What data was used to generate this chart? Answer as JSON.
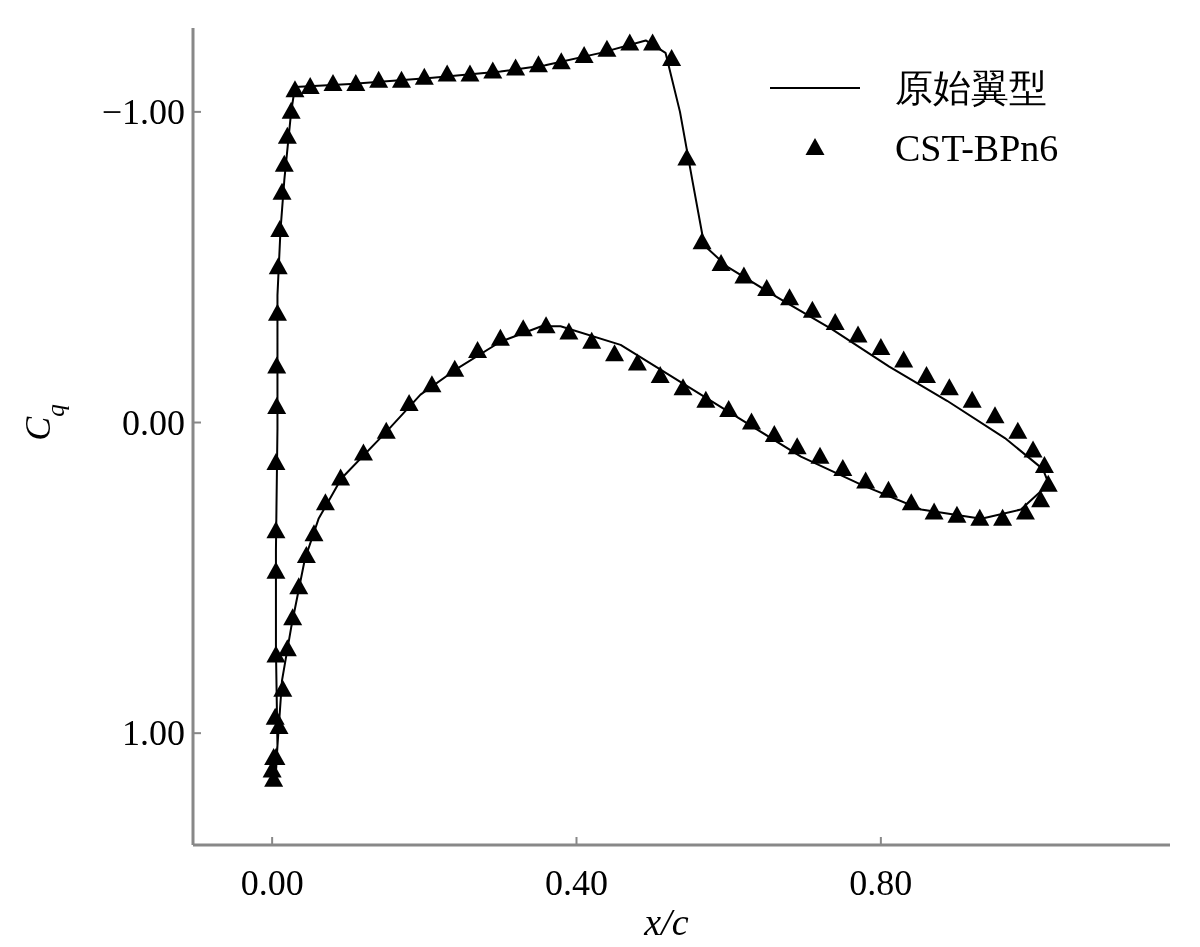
{
  "chart_data": {
    "type": "line",
    "xlabel": "x/c",
    "ylabel": "C$_{q}$",
    "xlim": [
      -0.104,
      1.18
    ],
    "ylim": [
      1.36,
      -1.27
    ],
    "xticks": [
      {
        "value": 0,
        "label": "0.00"
      },
      {
        "value": 0.4,
        "label": "0.40"
      },
      {
        "value": 0.8,
        "label": "0.80"
      }
    ],
    "yticks": [
      {
        "value": -1,
        "label": "−1.00"
      },
      {
        "value": 0,
        "label": "0.00"
      },
      {
        "value": 1,
        "label": "1.00"
      }
    ],
    "grid": false,
    "legend": "top right",
    "series": [
      {
        "name": "原始翼型",
        "type": "line",
        "color": "#000000",
        "line_style": "solid",
        "marker": "none",
        "x": [
          0.004,
          0.007,
          0.005,
          0.005,
          0.007,
          0.007,
          0.011,
          0.016,
          0.025,
          0.03,
          0.103,
          0.211,
          0.3,
          0.359,
          0.432,
          0.491,
          0.517,
          0.536,
          0.553,
          0.568,
          0.599,
          0.659,
          0.736,
          0.811,
          0.887,
          0.963,
          1.013,
          1.021,
          1.011,
          0.984,
          0.932,
          0.853,
          0.774,
          0.695,
          0.616,
          0.537,
          0.458,
          0.379,
          0.354,
          0.3,
          0.241,
          0.195,
          0.15,
          0.091,
          0.061,
          0.043,
          0.025,
          0.013,
          0.007,
          0.001
        ],
        "values": [
          1.17,
          1.04,
          0.73,
          0.41,
          0.02,
          -0.41,
          -0.62,
          -0.78,
          -1.0,
          -1.08,
          -1.09,
          -1.11,
          -1.13,
          -1.15,
          -1.19,
          -1.23,
          -1.19,
          -1.0,
          -0.77,
          -0.57,
          -0.5,
          -0.41,
          -0.3,
          -0.18,
          -0.07,
          0.05,
          0.15,
          0.2,
          0.22,
          0.28,
          0.31,
          0.28,
          0.2,
          0.11,
          -0.01,
          -0.13,
          -0.25,
          -0.31,
          -0.31,
          -0.26,
          -0.17,
          -0.09,
          0.03,
          0.18,
          0.31,
          0.44,
          0.66,
          0.83,
          1.04,
          1.17
        ]
      },
      {
        "name": "CST-BPn6",
        "type": "scatter",
        "color": "#000000",
        "marker": "triangle",
        "x": [
          0.0,
          0.002,
          0.004,
          0.005,
          0.005,
          0.005,
          0.005,
          0.006,
          0.006,
          0.007,
          0.008,
          0.01,
          0.013,
          0.016,
          0.02,
          0.025,
          0.03,
          0.05,
          0.08,
          0.11,
          0.14,
          0.17,
          0.2,
          0.23,
          0.26,
          0.29,
          0.32,
          0.35,
          0.38,
          0.41,
          0.44,
          0.47,
          0.5,
          0.525,
          0.545,
          0.565,
          0.59,
          0.62,
          0.65,
          0.68,
          0.71,
          0.74,
          0.77,
          0.8,
          0.83,
          0.86,
          0.89,
          0.92,
          0.95,
          0.98,
          1.0,
          1.015,
          1.02,
          1.01,
          0.99,
          0.96,
          0.93,
          0.9,
          0.87,
          0.84,
          0.81,
          0.78,
          0.75,
          0.72,
          0.69,
          0.66,
          0.63,
          0.6,
          0.57,
          0.54,
          0.51,
          0.48,
          0.45,
          0.42,
          0.39,
          0.36,
          0.33,
          0.3,
          0.27,
          0.24,
          0.21,
          0.18,
          0.15,
          0.12,
          0.09,
          0.07,
          0.055,
          0.045,
          0.035,
          0.027,
          0.02,
          0.014,
          0.009,
          0.005,
          0.002
        ],
        "values": [
          1.12,
          1.08,
          0.95,
          0.75,
          0.48,
          0.35,
          0.13,
          -0.05,
          -0.18,
          -0.35,
          -0.5,
          -0.62,
          -0.74,
          -0.83,
          -0.92,
          -1.0,
          -1.07,
          -1.08,
          -1.09,
          -1.09,
          -1.1,
          -1.1,
          -1.11,
          -1.12,
          -1.12,
          -1.13,
          -1.14,
          -1.15,
          -1.16,
          -1.18,
          -1.2,
          -1.22,
          -1.22,
          -1.17,
          -0.85,
          -0.58,
          -0.51,
          -0.47,
          -0.43,
          -0.4,
          -0.36,
          -0.32,
          -0.28,
          -0.24,
          -0.2,
          -0.15,
          -0.11,
          -0.07,
          -0.02,
          0.03,
          0.09,
          0.14,
          0.2,
          0.25,
          0.29,
          0.31,
          0.31,
          0.3,
          0.29,
          0.26,
          0.22,
          0.19,
          0.15,
          0.11,
          0.08,
          0.04,
          0.0,
          -0.04,
          -0.07,
          -0.11,
          -0.15,
          -0.19,
          -0.22,
          -0.26,
          -0.29,
          -0.31,
          -0.3,
          -0.27,
          -0.23,
          -0.17,
          -0.12,
          -0.06,
          0.03,
          0.1,
          0.18,
          0.26,
          0.36,
          0.43,
          0.53,
          0.63,
          0.73,
          0.86,
          0.98,
          1.08,
          1.15
        ]
      }
    ]
  }
}
